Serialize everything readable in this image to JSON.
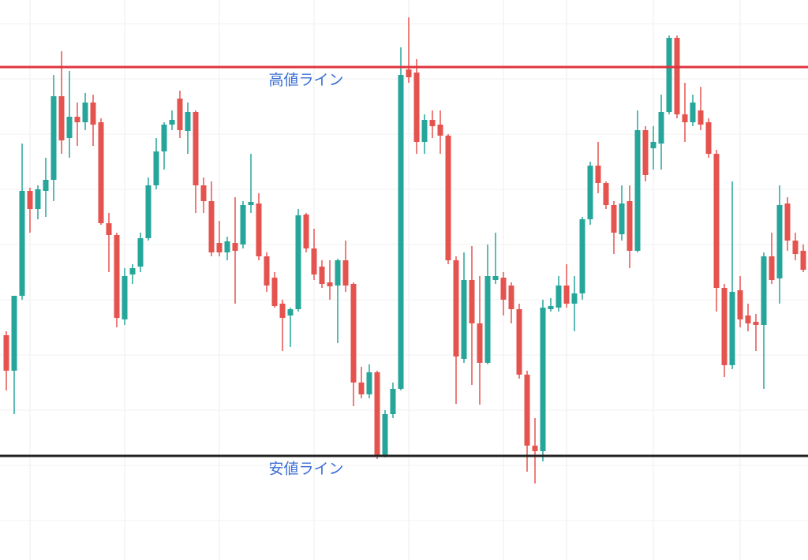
{
  "chart_data": {
    "type": "candlestick",
    "ylim": [
      0,
      710
    ],
    "grid": true,
    "up_color": "#26a69a",
    "down_color": "#e5534f",
    "open": [
      285,
      240,
      335,
      468,
      445,
      468,
      482,
      588,
      535,
      562,
      555,
      580,
      555,
      427,
      412,
      305,
      362,
      372,
      408,
      475,
      518,
      552,
      585,
      544,
      568,
      475,
      455,
      402,
      390,
      402,
      400,
      450,
      452,
      385,
      358,
      325,
      310,
      318,
      438,
      395,
      372,
      352,
      348,
      380,
      350,
      225,
      210,
      238,
      132,
      185,
      217,
      622,
      618,
      530,
      558,
      552,
      538,
      380,
      255,
      355,
      300,
      250,
      355,
      358,
      348,
      318,
      235,
      145,
      138,
      318,
      320,
      348,
      325,
      338,
      432,
      500,
      478,
      450,
      413,
      455,
      392,
      545,
      522,
      528,
      568,
      662,
      565,
      555,
      570,
      555,
      515,
      345,
      247,
      342,
      310,
      302,
      298,
      385,
      357,
      452,
      405,
      392
    ],
    "high": [
      290,
      335,
      528,
      472,
      475,
      510,
      615,
      645,
      620,
      580,
      592,
      590,
      560,
      440,
      415,
      370,
      375,
      415,
      485,
      535,
      555,
      570,
      595,
      580,
      570,
      485,
      480,
      430,
      410,
      460,
      455,
      515,
      465,
      390,
      365,
      330,
      320,
      445,
      440,
      420,
      380,
      380,
      382,
      405,
      352,
      245,
      248,
      240,
      190,
      225,
      650,
      688,
      635,
      565,
      570,
      570,
      540,
      385,
      390,
      398,
      360,
      400,
      415,
      365,
      352,
      325,
      240,
      180,
      330,
      332,
      360,
      375,
      360,
      435,
      505,
      530,
      480,
      455,
      475,
      475,
      570,
      550,
      550,
      590,
      665,
      665,
      605,
      590,
      600,
      560,
      520,
      350,
      480,
      360,
      325,
      312,
      390,
      415,
      475,
      460,
      415,
      400
    ],
    "low": [
      215,
      185,
      330,
      415,
      432,
      435,
      455,
      515,
      510,
      525,
      545,
      525,
      425,
      365,
      295,
      298,
      350,
      365,
      405,
      470,
      495,
      545,
      535,
      515,
      440,
      440,
      385,
      385,
      380,
      325,
      395,
      440,
      380,
      340,
      320,
      265,
      270,
      315,
      390,
      355,
      345,
      330,
      275,
      340,
      195,
      205,
      205,
      128,
      130,
      180,
      215,
      605,
      515,
      515,
      535,
      515,
      375,
      198,
      250,
      222,
      197,
      248,
      350,
      310,
      300,
      230,
      112,
      97,
      125,
      315,
      315,
      320,
      290,
      330,
      425,
      465,
      445,
      388,
      405,
      370,
      390,
      480,
      495,
      495,
      565,
      560,
      530,
      550,
      545,
      510,
      315,
      232,
      242,
      295,
      290,
      265,
      217,
      350,
      325,
      392,
      380,
      365
    ],
    "close": [
      240,
      335,
      468,
      445,
      470,
      482,
      588,
      532,
      562,
      555,
      580,
      552,
      427,
      412,
      307,
      360,
      370,
      408,
      475,
      518,
      552,
      558,
      545,
      568,
      475,
      455,
      390,
      390,
      404,
      392,
      450,
      454,
      385,
      348,
      322,
      307,
      318,
      437,
      395,
      362,
      350,
      347,
      380,
      348,
      225,
      210,
      238,
      132,
      185,
      217,
      615,
      612,
      530,
      558,
      550,
      538,
      380,
      258,
      355,
      300,
      250,
      360,
      360,
      330,
      318,
      235,
      145,
      138,
      320,
      322,
      348,
      325,
      338,
      432,
      500,
      478,
      450,
      415,
      452,
      392,
      545,
      488,
      530,
      568,
      662,
      565,
      555,
      580,
      552,
      515,
      345,
      247,
      340,
      305,
      300,
      298,
      385,
      355,
      450,
      405,
      388,
      368
    ],
    "annotations": [
      {
        "text": "高値ライン",
        "value": 625,
        "color": "#e0343e"
      },
      {
        "text": "安値ライン",
        "value": 132,
        "color": "#222222"
      }
    ]
  }
}
